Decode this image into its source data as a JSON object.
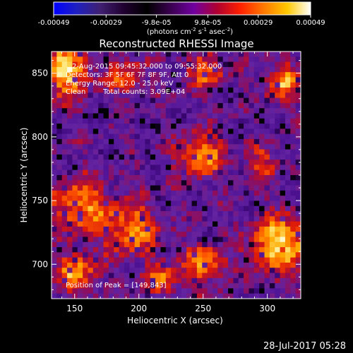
{
  "colorbar": {
    "tick_labels": [
      "-0.00049",
      "-0.00029",
      "-9.8e-05",
      "9.8e-05",
      "0.00029",
      "0.00049"
    ],
    "tick_values": [
      -0.00049,
      -0.00029,
      -9.8e-05,
      9.8e-05,
      0.00029,
      0.00049
    ],
    "range": [
      -0.00049,
      0.00049
    ],
    "unit_label": "(photons cm",
    "unit_sup1": "-2",
    "unit_mid": " s",
    "unit_sup2": "-1",
    "unit_end": " asec",
    "unit_sup3": "-2",
    "unit_close": ")",
    "palette_stops": [
      "#0000ff",
      "#2020c0",
      "#402070",
      "#200030",
      "#000000",
      "#3a0050",
      "#7000a0",
      "#b00030",
      "#ff2000",
      "#ff7a00",
      "#ffc800",
      "#ffffff"
    ]
  },
  "chart_data": {
    "type": "heatmap",
    "title": "Reconstructed RHESSI Image",
    "xlabel": "Heliocentric X (arcsec)",
    "ylabel": "Heliocentric Y (arcsec)",
    "xlim": [
      132,
      326
    ],
    "ylim": [
      673,
      867
    ],
    "x_ticks": [
      150,
      200,
      250,
      300
    ],
    "y_ticks": [
      700,
      750,
      800,
      850
    ],
    "grid": false,
    "annotations": [
      "2-Aug-2015 09:45:32.000 to 09:55:32.000",
      "Detectors: 3F 5F 6F 7F 8F 9F, Att 0",
      "Energy Range: 12.0 - 25.0 keV",
      "Clean",
      "Total counts: 3.09E+04"
    ],
    "peak_label": "Position of Peak = [149,843]",
    "peak_position": [
      149,
      843
    ]
  },
  "footer": {
    "timestamp": "28-Jul-2017 05:28"
  }
}
